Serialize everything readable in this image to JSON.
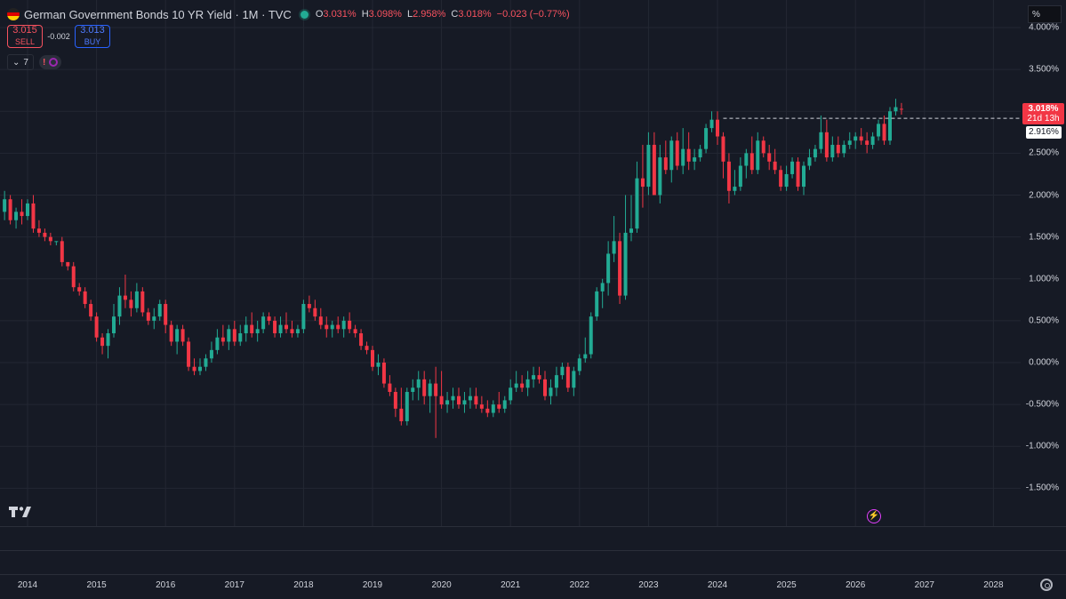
{
  "header": {
    "title": "German Government Bonds 10 YR Yield · 1M · TVC",
    "o_key": "O",
    "o_val": "3.031%",
    "h_key": "H",
    "h_val": "3.098%",
    "l_key": "L",
    "l_val": "2.958%",
    "c_key": "C",
    "c_val": "3.018%",
    "change": "−0.023 (−0.77%)"
  },
  "trade": {
    "sell_price": "3.015",
    "sell_label": "SELL",
    "spread": "-0.002",
    "buy_price": "3.013",
    "buy_label": "BUY"
  },
  "indicators": {
    "count": "7"
  },
  "scale_button": "%",
  "last_price": {
    "value": "3.018%",
    "countdown": "21d 13h"
  },
  "ref_price": {
    "value": "2.916%"
  },
  "colors": {
    "up": "#22ab94",
    "down": "#f23645",
    "background": "#161a25",
    "grid": "#232733"
  },
  "chart_data": {
    "type": "candlestick",
    "title": "",
    "xlabel": "",
    "ylabel": "",
    "ylim": [
      -1.9,
      4.05
    ],
    "y_ticks": [
      "4.000%",
      "3.500%",
      "3.000%",
      "2.500%",
      "2.000%",
      "1.500%",
      "1.000%",
      "0.500%",
      "0.000%",
      "-0.500%",
      "-1.000%",
      "-1.500%"
    ],
    "x_ticks": [
      "2014",
      "2015",
      "2016",
      "2017",
      "2018",
      "2019",
      "2020",
      "2021",
      "2022",
      "2023",
      "2024",
      "2025",
      "2026",
      "2027",
      "2028"
    ],
    "reference_line": 2.916,
    "x_start": "2013-09",
    "candles": [
      [
        1.8,
        2.05,
        1.7,
        1.95
      ],
      [
        1.95,
        2.0,
        1.65,
        1.7
      ],
      [
        1.7,
        1.85,
        1.6,
        1.8
      ],
      [
        1.8,
        1.95,
        1.65,
        1.75
      ],
      [
        1.75,
        1.95,
        1.7,
        1.9
      ],
      [
        1.9,
        2.0,
        1.55,
        1.6
      ],
      [
        1.6,
        1.7,
        1.5,
        1.55
      ],
      [
        1.55,
        1.6,
        1.45,
        1.5
      ],
      [
        1.5,
        1.55,
        1.4,
        1.45
      ],
      [
        1.45,
        1.45,
        1.4,
        1.45
      ],
      [
        1.45,
        1.5,
        1.15,
        1.2
      ],
      [
        1.2,
        1.2,
        1.1,
        1.15
      ],
      [
        1.15,
        1.2,
        0.85,
        0.9
      ],
      [
        0.9,
        0.95,
        0.8,
        0.85
      ],
      [
        0.85,
        0.9,
        0.65,
        0.7
      ],
      [
        0.7,
        0.75,
        0.5,
        0.55
      ],
      [
        0.55,
        0.6,
        0.25,
        0.3
      ],
      [
        0.3,
        0.35,
        0.1,
        0.2
      ],
      [
        0.2,
        0.4,
        0.05,
        0.35
      ],
      [
        0.35,
        0.7,
        0.3,
        0.55
      ],
      [
        0.55,
        0.9,
        0.45,
        0.8
      ],
      [
        0.8,
        1.05,
        0.65,
        0.75
      ],
      [
        0.75,
        0.85,
        0.55,
        0.65
      ],
      [
        0.65,
        0.95,
        0.6,
        0.85
      ],
      [
        0.85,
        0.9,
        0.55,
        0.6
      ],
      [
        0.6,
        0.65,
        0.45,
        0.5
      ],
      [
        0.5,
        0.65,
        0.4,
        0.55
      ],
      [
        0.55,
        0.75,
        0.5,
        0.7
      ],
      [
        0.7,
        0.75,
        0.35,
        0.45
      ],
      [
        0.45,
        0.5,
        0.2,
        0.25
      ],
      [
        0.25,
        0.45,
        0.1,
        0.4
      ],
      [
        0.4,
        0.45,
        0.2,
        0.25
      ],
      [
        0.25,
        0.3,
        -0.1,
        -0.05
      ],
      [
        -0.05,
        0.05,
        -0.15,
        -0.1
      ],
      [
        -0.1,
        0.05,
        -0.15,
        -0.05
      ],
      [
        -0.05,
        0.1,
        -0.1,
        0.05
      ],
      [
        0.05,
        0.25,
        0.0,
        0.15
      ],
      [
        0.15,
        0.4,
        0.1,
        0.3
      ],
      [
        0.3,
        0.45,
        0.2,
        0.25
      ],
      [
        0.25,
        0.45,
        0.15,
        0.4
      ],
      [
        0.4,
        0.5,
        0.2,
        0.25
      ],
      [
        0.25,
        0.45,
        0.2,
        0.35
      ],
      [
        0.35,
        0.55,
        0.25,
        0.45
      ],
      [
        0.45,
        0.6,
        0.3,
        0.35
      ],
      [
        0.35,
        0.5,
        0.25,
        0.4
      ],
      [
        0.4,
        0.6,
        0.35,
        0.55
      ],
      [
        0.55,
        0.6,
        0.45,
        0.5
      ],
      [
        0.5,
        0.55,
        0.3,
        0.35
      ],
      [
        0.35,
        0.55,
        0.3,
        0.45
      ],
      [
        0.45,
        0.6,
        0.35,
        0.4
      ],
      [
        0.4,
        0.5,
        0.3,
        0.35
      ],
      [
        0.35,
        0.45,
        0.3,
        0.4
      ],
      [
        0.4,
        0.75,
        0.35,
        0.7
      ],
      [
        0.7,
        0.8,
        0.6,
        0.65
      ],
      [
        0.65,
        0.75,
        0.5,
        0.55
      ],
      [
        0.55,
        0.65,
        0.4,
        0.45
      ],
      [
        0.45,
        0.55,
        0.3,
        0.4
      ],
      [
        0.4,
        0.5,
        0.3,
        0.45
      ],
      [
        0.45,
        0.55,
        0.35,
        0.4
      ],
      [
        0.4,
        0.55,
        0.3,
        0.5
      ],
      [
        0.5,
        0.6,
        0.35,
        0.4
      ],
      [
        0.4,
        0.45,
        0.3,
        0.35
      ],
      [
        0.35,
        0.4,
        0.15,
        0.2
      ],
      [
        0.2,
        0.25,
        0.1,
        0.15
      ],
      [
        0.15,
        0.2,
        -0.1,
        -0.05
      ],
      [
        -0.05,
        0.1,
        -0.15,
        0.0
      ],
      [
        0.0,
        0.05,
        -0.3,
        -0.25
      ],
      [
        -0.25,
        -0.15,
        -0.4,
        -0.35
      ],
      [
        -0.35,
        -0.3,
        -0.65,
        -0.55
      ],
      [
        -0.55,
        -0.3,
        -0.75,
        -0.7
      ],
      [
        -0.7,
        -0.3,
        -0.75,
        -0.35
      ],
      [
        -0.35,
        -0.2,
        -0.45,
        -0.3
      ],
      [
        -0.3,
        -0.1,
        -0.45,
        -0.2
      ],
      [
        -0.2,
        -0.1,
        -0.5,
        -0.4
      ],
      [
        -0.4,
        -0.2,
        -0.6,
        -0.25
      ],
      [
        -0.25,
        -0.05,
        -0.9,
        -0.4
      ],
      [
        -0.4,
        -0.1,
        -0.55,
        -0.5
      ],
      [
        -0.5,
        -0.35,
        -0.6,
        -0.45
      ],
      [
        -0.45,
        -0.3,
        -0.55,
        -0.4
      ],
      [
        -0.4,
        -0.3,
        -0.55,
        -0.5
      ],
      [
        -0.5,
        -0.35,
        -0.6,
        -0.45
      ],
      [
        -0.45,
        -0.3,
        -0.55,
        -0.4
      ],
      [
        -0.4,
        -0.3,
        -0.55,
        -0.5
      ],
      [
        -0.5,
        -0.4,
        -0.6,
        -0.55
      ],
      [
        -0.55,
        -0.45,
        -0.65,
        -0.6
      ],
      [
        -0.6,
        -0.45,
        -0.65,
        -0.5
      ],
      [
        -0.5,
        -0.35,
        -0.6,
        -0.55
      ],
      [
        -0.55,
        -0.4,
        -0.6,
        -0.45
      ],
      [
        -0.45,
        -0.2,
        -0.5,
        -0.3
      ],
      [
        -0.3,
        -0.1,
        -0.35,
        -0.25
      ],
      [
        -0.25,
        -0.15,
        -0.35,
        -0.3
      ],
      [
        -0.3,
        -0.1,
        -0.4,
        -0.2
      ],
      [
        -0.2,
        -0.05,
        -0.3,
        -0.15
      ],
      [
        -0.15,
        -0.05,
        -0.25,
        -0.2
      ],
      [
        -0.2,
        -0.1,
        -0.45,
        -0.4
      ],
      [
        -0.4,
        -0.2,
        -0.5,
        -0.3
      ],
      [
        -0.3,
        -0.05,
        -0.4,
        -0.15
      ],
      [
        -0.15,
        0.0,
        -0.2,
        -0.05
      ],
      [
        -0.05,
        0.0,
        -0.35,
        -0.3
      ],
      [
        -0.3,
        -0.05,
        -0.4,
        -0.1
      ],
      [
        -0.1,
        0.1,
        -0.15,
        0.05
      ],
      [
        0.05,
        0.3,
        0.0,
        0.1
      ],
      [
        0.1,
        0.6,
        0.05,
        0.55
      ],
      [
        0.55,
        0.9,
        0.5,
        0.85
      ],
      [
        0.85,
        1.0,
        0.65,
        0.95
      ],
      [
        0.95,
        1.45,
        0.8,
        1.3
      ],
      [
        1.3,
        1.75,
        1.2,
        1.45
      ],
      [
        1.45,
        1.55,
        0.7,
        0.8
      ],
      [
        0.8,
        2.0,
        0.75,
        1.55
      ],
      [
        1.55,
        2.0,
        1.45,
        1.6
      ],
      [
        1.6,
        2.4,
        1.55,
        2.2
      ],
      [
        2.2,
        2.6,
        1.85,
        2.1
      ],
      [
        2.1,
        2.75,
        2.0,
        2.6
      ],
      [
        2.6,
        2.75,
        2.0,
        2.0
      ],
      [
        2.0,
        2.6,
        1.9,
        2.45
      ],
      [
        2.45,
        2.65,
        2.25,
        2.3
      ],
      [
        2.3,
        2.7,
        2.15,
        2.65
      ],
      [
        2.65,
        2.75,
        2.3,
        2.35
      ],
      [
        2.35,
        2.8,
        2.25,
        2.55
      ],
      [
        2.55,
        2.75,
        2.3,
        2.4
      ],
      [
        2.4,
        2.55,
        2.3,
        2.45
      ],
      [
        2.45,
        2.6,
        2.4,
        2.55
      ],
      [
        2.55,
        2.85,
        2.5,
        2.8
      ],
      [
        2.8,
        3.0,
        2.75,
        2.9
      ],
      [
        2.9,
        3.0,
        2.6,
        2.7
      ],
      [
        2.7,
        2.75,
        2.2,
        2.4
      ],
      [
        2.4,
        2.5,
        1.9,
        2.05
      ],
      [
        2.05,
        2.3,
        2.0,
        2.1
      ],
      [
        2.1,
        2.45,
        2.05,
        2.35
      ],
      [
        2.35,
        2.55,
        2.2,
        2.5
      ],
      [
        2.5,
        2.7,
        2.25,
        2.3
      ],
      [
        2.3,
        2.75,
        2.25,
        2.65
      ],
      [
        2.65,
        2.7,
        2.45,
        2.5
      ],
      [
        2.5,
        2.6,
        2.3,
        2.4
      ],
      [
        2.4,
        2.55,
        2.25,
        2.3
      ],
      [
        2.3,
        2.35,
        2.05,
        2.1
      ],
      [
        2.1,
        2.35,
        2.05,
        2.25
      ],
      [
        2.25,
        2.45,
        2.2,
        2.4
      ],
      [
        2.4,
        2.45,
        2.05,
        2.1
      ],
      [
        2.1,
        2.4,
        2.0,
        2.35
      ],
      [
        2.35,
        2.55,
        2.3,
        2.45
      ],
      [
        2.45,
        2.6,
        2.4,
        2.55
      ],
      [
        2.55,
        2.95,
        2.5,
        2.75
      ],
      [
        2.75,
        2.9,
        2.4,
        2.45
      ],
      [
        2.45,
        2.7,
        2.4,
        2.6
      ],
      [
        2.6,
        2.7,
        2.45,
        2.5
      ],
      [
        2.5,
        2.65,
        2.45,
        2.6
      ],
      [
        2.6,
        2.75,
        2.55,
        2.65
      ],
      [
        2.65,
        2.75,
        2.55,
        2.7
      ],
      [
        2.7,
        2.8,
        2.6,
        2.65
      ],
      [
        2.65,
        2.75,
        2.5,
        2.6
      ],
      [
        2.6,
        2.75,
        2.55,
        2.7
      ],
      [
        2.7,
        2.9,
        2.65,
        2.85
      ],
      [
        2.85,
        2.95,
        2.6,
        2.65
      ],
      [
        2.65,
        3.05,
        2.6,
        3.0
      ],
      [
        3.0,
        3.15,
        2.95,
        3.05
      ],
      [
        3.03,
        3.1,
        2.96,
        3.02
      ]
    ]
  }
}
